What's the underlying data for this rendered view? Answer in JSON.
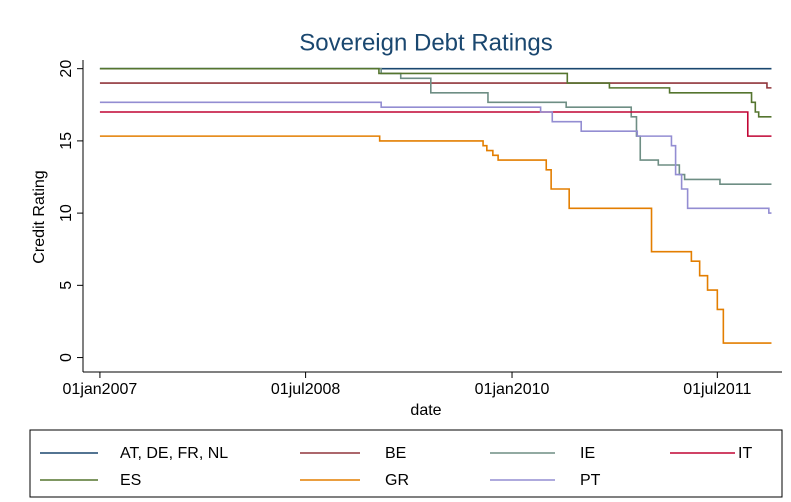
{
  "chart_data": {
    "type": "step",
    "title": "Sovereign Debt Ratings",
    "xlabel": "date",
    "ylabel": "Credit Rating",
    "xlim": [
      "17nov2006",
      "20dec2011"
    ],
    "xticks": [
      "01jan2007",
      "01jul2008",
      "01jan2010",
      "01jul2011"
    ],
    "ylim": [
      -1,
      20.6
    ],
    "yticks": [
      0,
      5,
      10,
      15,
      20
    ],
    "series": [
      {
        "name": "AT, DE, FR, NL",
        "color": "#1a476f",
        "x": [
          "01jan2007",
          "22nov2011"
        ],
        "values": [
          20,
          20
        ]
      },
      {
        "name": "BE",
        "color": "#90353b",
        "x": [
          "01jan2007",
          "10nov2011",
          "22nov2011"
        ],
        "values": [
          19,
          18.67,
          18.67
        ]
      },
      {
        "name": "IE",
        "color": "#6e8e84",
        "x": [
          "01jan2007",
          "18jan2009",
          "11mar2009",
          "30may2009",
          "29oct2009",
          "25may2010",
          "14nov2010",
          "28nov2010",
          "08dec2010",
          "25jan2011",
          "22mar2011",
          "05apr2011",
          "08jul2011",
          "22nov2011"
        ],
        "values": [
          20,
          19.67,
          19.33,
          18.33,
          17.67,
          17.33,
          16.67,
          15.33,
          13.67,
          13.33,
          12.67,
          12.33,
          12,
          12
        ]
      },
      {
        "name": "IT",
        "color": "#c10534",
        "x": [
          "01jan2007",
          "20sep2011",
          "22nov2011"
        ],
        "values": [
          17,
          15.33,
          15.33
        ]
      },
      {
        "name": "ES",
        "color": "#55752f",
        "x": [
          "01jan2007",
          "12jan2009",
          "28may2010",
          "17sep2010",
          "24feb2011",
          "30sep2011",
          "10oct2011",
          "19oct2011",
          "22nov2011"
        ],
        "values": [
          20,
          19.67,
          19,
          18.67,
          18.33,
          17.67,
          17,
          16.67,
          16.67
        ]
      },
      {
        "name": "GR",
        "color": "#e37e00",
        "x": [
          "01jan2007",
          "14jan2009",
          "16oct2009",
          "26oct2009",
          "11nov2009",
          "25nov2009",
          "02apr2010",
          "15apr2010",
          "02jun2010",
          "07jan2011",
          "23apr2011",
          "15may2011",
          "05jun2011",
          "01jul2011",
          "17jul2011",
          "22nov2011"
        ],
        "values": [
          15.33,
          15,
          14.67,
          14.33,
          14,
          13.67,
          13,
          11.67,
          10.33,
          7.33,
          6.67,
          5.67,
          4.67,
          3.33,
          1,
          1
        ]
      },
      {
        "name": "PT",
        "color": "#938dd2",
        "x": [
          "01jan2007",
          "18jan2009",
          "18mar2010",
          "18apr2010",
          "04jul2010",
          "30nov2010",
          "01mar2011",
          "12mar2011",
          "28mar2011",
          "13apr2011",
          "15nov2011",
          "22nov2011"
        ],
        "values": [
          17.67,
          17.33,
          17,
          16.33,
          15.67,
          15.33,
          14.67,
          12.67,
          11.67,
          10.33,
          10,
          10
        ]
      }
    ]
  }
}
